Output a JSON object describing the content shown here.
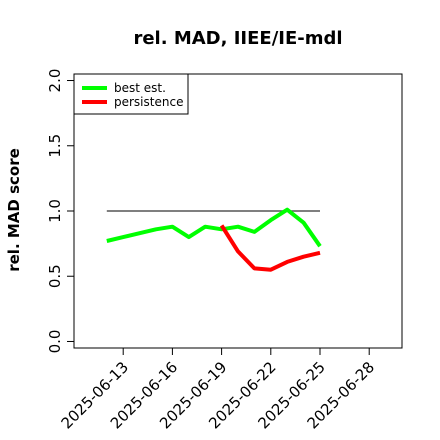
{
  "chart_data": {
    "type": "line",
    "title": "rel. MAD, IIEE/IE-mdl",
    "ylabel": "rel. MAD score",
    "xlabel": "",
    "x_ticks": [
      "2025-06-13",
      "2025-06-16",
      "2025-06-19",
      "2025-06-22",
      "2025-06-25",
      "2025-06-28"
    ],
    "xlim": [
      "2025-06-10",
      "2025-06-30"
    ],
    "ylim": [
      -0.05,
      2.05
    ],
    "y_ticks": [
      "0.0",
      "0.5",
      "1.0",
      "1.5",
      "2.0"
    ],
    "reference_line": {
      "y": 1.0,
      "x_start": "2025-06-12",
      "x_end": "2025-06-25",
      "color": "#555555"
    },
    "legend_position": "top-left",
    "grid": false,
    "series": [
      {
        "name": "best est.",
        "color": "#00ff00",
        "points": [
          {
            "x": "2025-06-12",
            "y": 0.77
          },
          {
            "x": "2025-06-13",
            "y": 0.8
          },
          {
            "x": "2025-06-14",
            "y": 0.83
          },
          {
            "x": "2025-06-15",
            "y": 0.86
          },
          {
            "x": "2025-06-16",
            "y": 0.88
          },
          {
            "x": "2025-06-17",
            "y": 0.8
          },
          {
            "x": "2025-06-18",
            "y": 0.88
          },
          {
            "x": "2025-06-19",
            "y": 0.86
          },
          {
            "x": "2025-06-20",
            "y": 0.88
          },
          {
            "x": "2025-06-21",
            "y": 0.84
          },
          {
            "x": "2025-06-22",
            "y": 0.93
          },
          {
            "x": "2025-06-23",
            "y": 1.01
          },
          {
            "x": "2025-06-24",
            "y": 0.91
          },
          {
            "x": "2025-06-25",
            "y": 0.73
          }
        ]
      },
      {
        "name": "persistence",
        "color": "#ff0000",
        "points": [
          {
            "x": "2025-06-19",
            "y": 0.89
          },
          {
            "x": "2025-06-20",
            "y": 0.69
          },
          {
            "x": "2025-06-21",
            "y": 0.56
          },
          {
            "x": "2025-06-22",
            "y": 0.55
          },
          {
            "x": "2025-06-23",
            "y": 0.61
          },
          {
            "x": "2025-06-24",
            "y": 0.65
          },
          {
            "x": "2025-06-25",
            "y": 0.68
          }
        ]
      }
    ]
  }
}
